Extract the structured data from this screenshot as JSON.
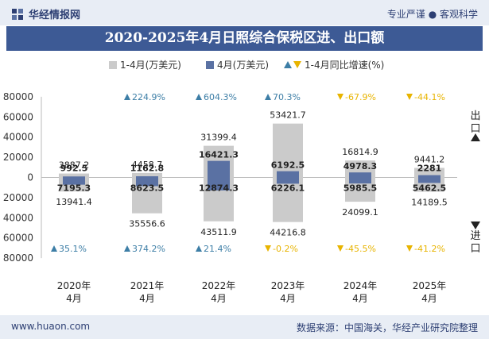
{
  "header": {
    "brand": "华经情报网",
    "tagline": "专业严谨 ● 客观科学"
  },
  "title": "2020-2025年4月日照综合保税区进、出口额",
  "footer": {
    "website": "www.huaon.com",
    "source": "数据来源：中国海关，华经产业研究院整理"
  },
  "side_labels": {
    "export": "出口",
    "import": "进口"
  },
  "colors": {
    "title_bg": "#3d5a95",
    "cumulative_bar": "#cbcbcb",
    "april_bar": "#5a71a3",
    "up_marker": "#3d7ea6",
    "down_marker": "#e8b400"
  },
  "chart_data": {
    "type": "bar",
    "title": "2020-2025年4月日照综合保税区进、出口额",
    "categories": [
      "2020年\n4月",
      "2021年\n4月",
      "2022年\n4月",
      "2023年\n4月",
      "2024年\n4月",
      "2025年\n4月"
    ],
    "legend": [
      {
        "label": "1-4月(万美元)",
        "marker": "square"
      },
      {
        "label": "4月(万美元)",
        "marker": "square"
      },
      {
        "label": "1-4月同比增速(%)",
        "marker": "triangles"
      }
    ],
    "yticks": [
      "80000",
      "60000",
      "40000",
      "20000",
      "0",
      "20000",
      "40000",
      "60000",
      "80000"
    ],
    "ylim": [
      -80000,
      80000
    ],
    "export": {
      "cumulative": [
        3887.2,
        4458.7,
        31399.4,
        53421.7,
        16814.9,
        9441.2
      ],
      "cumulative_labels": [
        "3887.2",
        "4458.7",
        "31399.4",
        "53421.7",
        "16814.9",
        "9441.2"
      ],
      "april": [
        992.5,
        1162.8,
        16421.3,
        6192.5,
        4978.3,
        2281
      ],
      "april_labels": [
        "992.5",
        "1162.8",
        "16421.3",
        "6192.5",
        "4978.3",
        "2281"
      ],
      "yoy": [
        null,
        224.9,
        604.3,
        70.3,
        -67.9,
        -44.1
      ],
      "yoy_labels": [
        "",
        "224.9%",
        "604.3%",
        "70.3%",
        "-67.9%",
        "-44.1%"
      ]
    },
    "import": {
      "cumulative": [
        13941.4,
        35556.6,
        43511.9,
        44216.8,
        24099.1,
        14189.5
      ],
      "cumulative_labels": [
        "13941.4",
        "35556.6",
        "43511.9",
        "44216.8",
        "24099.1",
        "14189.5"
      ],
      "april": [
        7195.3,
        8623.5,
        12874.3,
        6226.1,
        5985.5,
        5462.5
      ],
      "april_labels": [
        "7195.3",
        "8623.5",
        "12874.3",
        "6226.1",
        "5985.5",
        "5462.5"
      ],
      "yoy": [
        35.1,
        374.2,
        21.4,
        -0.2,
        -45.5,
        -41.2
      ],
      "yoy_labels": [
        "35.1%",
        "374.2%",
        "21.4%",
        "-0.2%",
        "-45.5%",
        "-41.2%"
      ]
    }
  }
}
